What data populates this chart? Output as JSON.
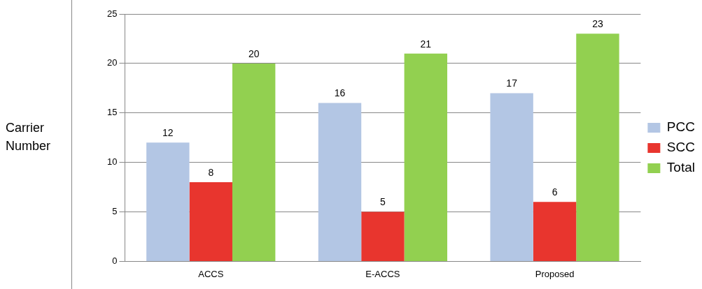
{
  "chart_data": {
    "type": "bar",
    "ylabel": "Carrier Number",
    "categories": [
      "ACCS",
      "E-ACCS",
      "Proposed"
    ],
    "series": [
      {
        "name": "PCC",
        "color": "#b3c6e4",
        "values": [
          12,
          16,
          17
        ]
      },
      {
        "name": "SCC",
        "color": "#e8352e",
        "values": [
          8,
          5,
          6
        ]
      },
      {
        "name": "Total",
        "color": "#92d050",
        "values": [
          20,
          21,
          23
        ]
      }
    ],
    "ylim": [
      0,
      25
    ],
    "yticks": [
      0,
      5,
      10,
      15,
      20,
      25
    ],
    "grid": "y",
    "legend": "right",
    "data_labels": true
  }
}
